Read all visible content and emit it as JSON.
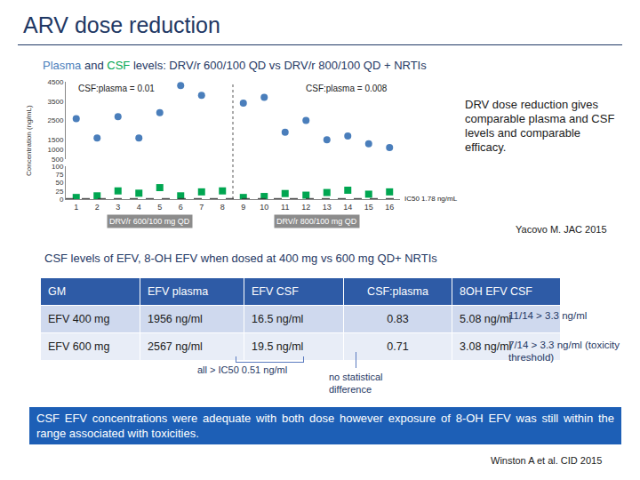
{
  "slide": {
    "title": "ARV dose reduction",
    "conclusion": "DRV dose reduction gives comparable plasma and CSF levels and comparable efficacy.",
    "source": "Yacovo M. JAC 2015",
    "section2": {
      "heading": "CSF levels of EFV, 8-OH EFV when dosed at 400 mg vs 600 mg QD+ NRTIs",
      "table": {
        "header": [
          "GM",
          "EFV plasma",
          "EFV CSF",
          "CSF:plasma",
          "8OH EFV CSF"
        ],
        "rows": [
          [
            "EFV 400 mg",
            "1956 ng/ml",
            "16.5 ng/ml",
            "0.83",
            "5.08 ng/ml"
          ],
          [
            "EFV 600 mg",
            "2567 ng/ml",
            "19.5 ng/ml",
            "0.71",
            "3.08 ng/ml"
          ]
        ],
        "row_notes": [
          "11/14 > 3.3 ng/ml",
          "7/14 > 3.3 ng/ml (toxicity threshold)"
        ],
        "footnotes": [
          "all > IC50 0.51 ng/ml",
          "no statistical difference"
        ]
      },
      "conclusion": "CSF EFV concentrations were adequate with both dose however exposure of 8-OH EFV was still within the range associated with toxicities.",
      "source": "Winston A et al. CID 2015"
    }
  },
  "chart_data": {
    "type": "scatter",
    "title": "Plasma and CSF levels: DRV/r 600/100 QD vs DRV/r 800/100 QD + NRTIs",
    "y_label": "Concentration (ng/mL)",
    "x": [
      1,
      2,
      3,
      4,
      5,
      6,
      7,
      8,
      9,
      10,
      11,
      12,
      13,
      14,
      15,
      16
    ],
    "xlim": [
      0.5,
      16.5
    ],
    "xticks": [
      1,
      2,
      3,
      4,
      5,
      6,
      7,
      8,
      9,
      10,
      11,
      12,
      13,
      14,
      15,
      16
    ],
    "ylim": [
      0,
      100
    ],
    "yticks": [
      0,
      25,
      50,
      75,
      100
    ],
    "y2lim": [
      500,
      4500
    ],
    "y2ticks": [
      500,
      1000,
      1500,
      2500,
      3500,
      4500
    ],
    "grid": false,
    "series": [
      {
        "name": "Plasma",
        "color": "#4a7ebb",
        "marker": "circle",
        "axis": "y2",
        "values": [
          2600,
          1600,
          2700,
          1600,
          2900,
          4300,
          3800,
          null,
          3400,
          3700,
          1900,
          2500,
          1500,
          1700,
          1300,
          1100
        ]
      },
      {
        "name": "CSF",
        "color": "#00a651",
        "marker": "square",
        "axis": "y",
        "values": [
          5,
          10,
          25,
          18,
          35,
          10,
          22,
          25,
          5,
          8,
          17,
          12,
          20,
          27,
          15,
          22
        ]
      }
    ],
    "groups": [
      {
        "name": "DRV/r 600/100 mg QD",
        "note": "CSF:plasma = 0.01",
        "first": 1,
        "last": 8
      },
      {
        "name": "DRV/r 800/100 mg QD",
        "note": "CSF:plasma = 0.008",
        "first": 9,
        "last": 16
      }
    ],
    "reference_line": {
      "value": 1.78,
      "label": "IC50 1.78 ng/mL"
    }
  }
}
